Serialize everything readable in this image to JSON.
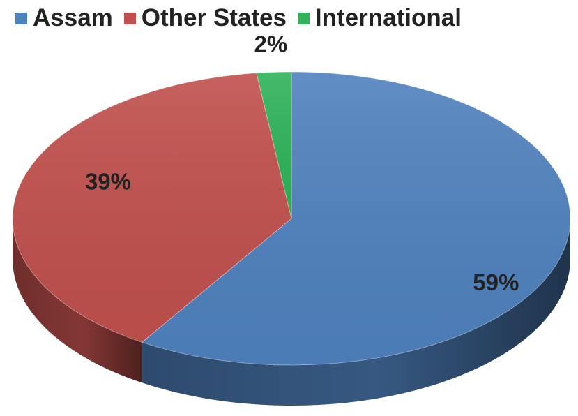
{
  "chart_data": {
    "type": "pie",
    "title": "",
    "three_d": true,
    "legend_position": "top",
    "categories": [
      "Assam",
      "Other States",
      "International"
    ],
    "values": [
      59,
      39,
      2
    ],
    "labels": [
      "59%",
      "39%",
      "2%"
    ],
    "colors": [
      "#4f81bd",
      "#c0504d",
      "#2fb35a"
    ]
  }
}
